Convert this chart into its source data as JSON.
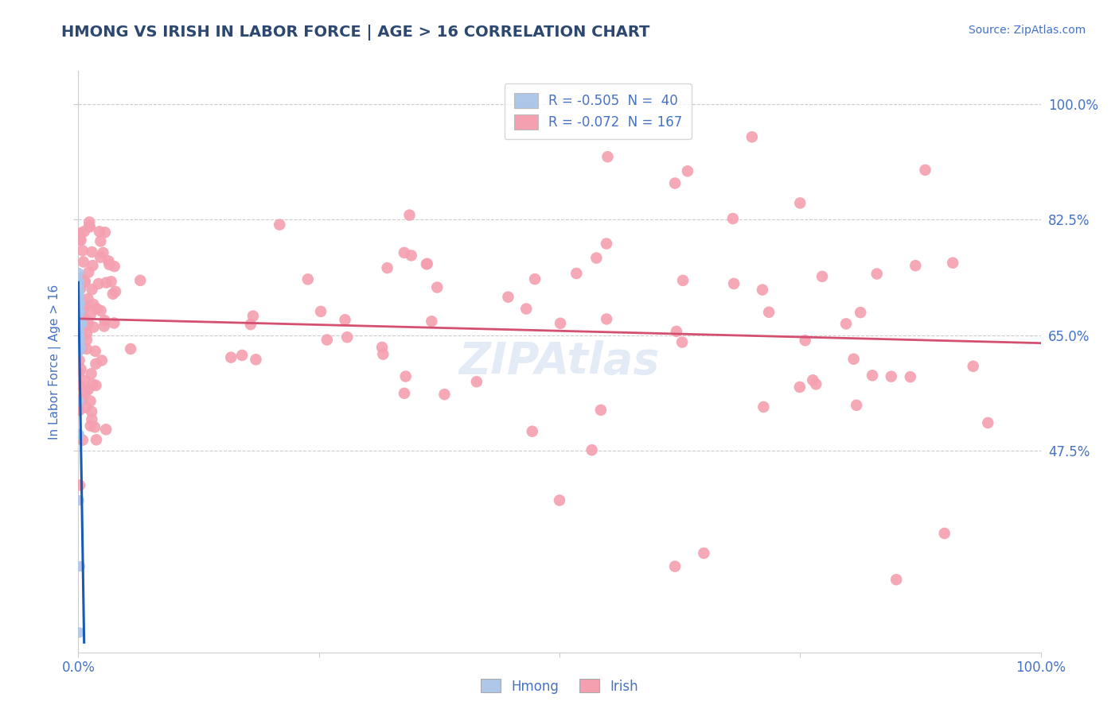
{
  "title": "HMONG VS IRISH IN LABOR FORCE | AGE > 16 CORRELATION CHART",
  "source": "Source: ZipAtlas.com",
  "ylabel": "In Labor Force | Age > 16",
  "title_color": "#2c4770",
  "axis_label_color": "#4472c4",
  "tick_label_color": "#4472c4",
  "background_color": "#ffffff",
  "grid_color": "#cccccc",
  "hmong_color": "#aec6e8",
  "irish_color": "#f4a0b0",
  "hmong_line_color": "#1a5ab5",
  "irish_line_color": "#d45070",
  "legend_hmong_label": "R = -0.505  N =  40",
  "legend_irish_label": "R = -0.072  N = 167",
  "watermark": "ZIPAtlas",
  "xlim": [
    0.0,
    1.0
  ],
  "ylim": [
    0.17,
    1.05
  ],
  "ytick_positions": [
    0.475,
    0.65,
    0.825,
    1.0
  ],
  "ytick_labels": [
    "47.5%",
    "65.0%",
    "82.5%",
    "100.0%"
  ],
  "xtick_positions": [
    0.0,
    0.25,
    0.5,
    0.75,
    1.0
  ],
  "xtick_labels": [
    "0.0%",
    "",
    "",
    "",
    "100.0%"
  ],
  "hmong_line_x": [
    0.0,
    0.006
  ],
  "hmong_line_y": [
    0.73,
    0.185
  ],
  "irish_line_x": [
    0.0,
    1.0
  ],
  "irish_line_y": [
    0.675,
    0.638
  ]
}
